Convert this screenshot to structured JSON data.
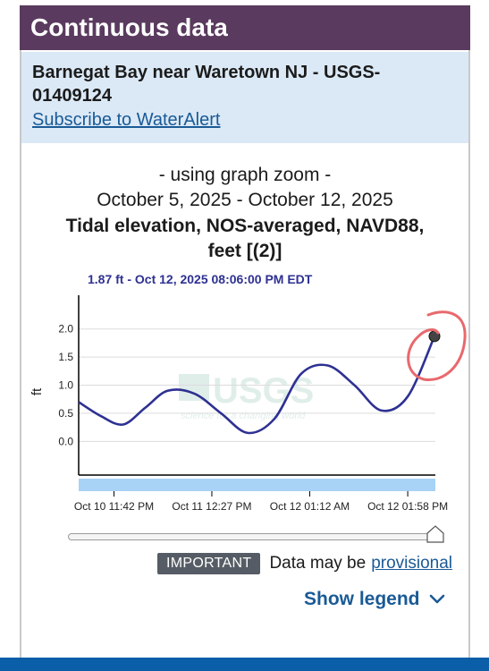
{
  "header": {
    "title": "Continuous data"
  },
  "site": {
    "title": "Barnegat Bay near Waretown NJ - USGS-01409124",
    "subscribe_link": "Subscribe to WaterAlert"
  },
  "graph": {
    "zoom_label": "- using graph zoom -",
    "date_range": "October 5, 2025 - October 12, 2025",
    "parameter": "Tidal elevation, NOS-averaged, NAVD88, feet [(2)]",
    "tooltip": "1.87 ft - Oct 12, 2025 08:06:00 PM EDT",
    "watermark_text": "USGS",
    "watermark_tagline": "science for a changing world"
  },
  "colors": {
    "series": "#2e3192",
    "header_bg": "#5a3a5e",
    "site_bg": "#dbe9f6",
    "link": "#1a5a96",
    "annotation": "#e8696d",
    "brush": "#a8d2f6"
  },
  "chart_data": {
    "type": "line",
    "ylabel": "ft",
    "xlabel": "",
    "ylim": [
      -0.6,
      2.6
    ],
    "yticks": [
      "0.0",
      "0.5",
      "1.0",
      "1.5",
      "2.0"
    ],
    "ytick_values": [
      0.0,
      0.5,
      1.0,
      1.5,
      2.0
    ],
    "xticks": [
      "Oct 10 11:42 PM",
      "Oct 11 12:27 PM",
      "Oct 12 01:12 AM",
      "Oct 12 01:58 PM"
    ],
    "x_range_hours": [
      -10,
      30.1
    ],
    "xtick_values_hours": [
      0,
      12.75,
      25.5,
      38.27
    ],
    "series": [
      {
        "x": [
          -10,
          -7.5,
          -5,
          -2.5,
          0,
          3,
          6,
          9,
          12,
          15,
          18,
          21,
          24,
          27,
          30
        ],
        "y": [
          0.7,
          0.45,
          0.3,
          0.6,
          0.9,
          0.85,
          0.5,
          0.15,
          0.4,
          1.2,
          1.35,
          1.0,
          0.55,
          0.8,
          1.87
        ]
      }
    ],
    "grid": true,
    "grid_axis": "y"
  },
  "notice": {
    "badge": "IMPORTANT",
    "text": "Data may be",
    "link": "provisional"
  },
  "legend": {
    "toggle_label": "Show legend"
  }
}
